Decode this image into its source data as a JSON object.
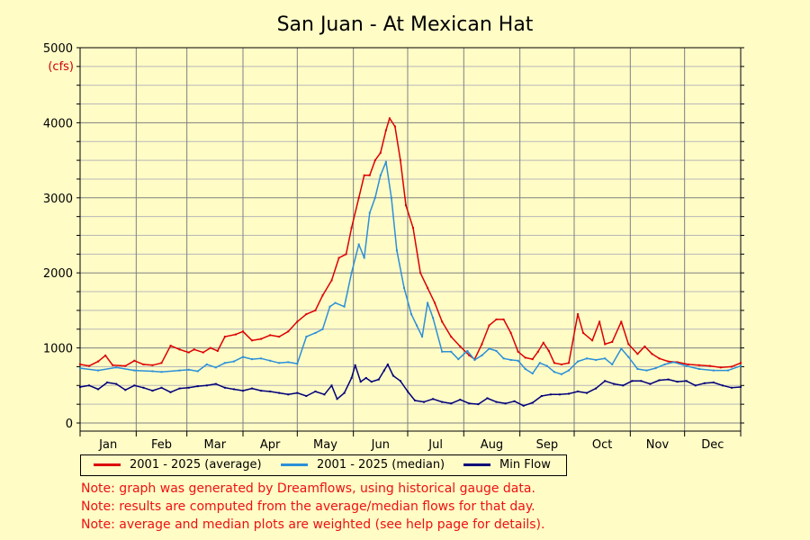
{
  "chart_data": {
    "type": "line",
    "title": "San Juan - At Mexican Hat",
    "ylabel_units": "(cfs)",
    "ylim": [
      0,
      5000
    ],
    "yticks": [
      0,
      1000,
      2000,
      3000,
      4000,
      5000
    ],
    "xlim": [
      0,
      365
    ],
    "months": [
      "Jan",
      "Feb",
      "Mar",
      "Apr",
      "May",
      "Jun",
      "Jul",
      "Aug",
      "Sep",
      "Oct",
      "Nov",
      "Dec"
    ],
    "grid": true,
    "legend_position": "bottom",
    "series": [
      {
        "name": "2001 - 2025 (average)",
        "color": "#dd0000",
        "points": [
          [
            0,
            780
          ],
          [
            5,
            760
          ],
          [
            10,
            820
          ],
          [
            14,
            900
          ],
          [
            18,
            770
          ],
          [
            25,
            760
          ],
          [
            30,
            830
          ],
          [
            35,
            780
          ],
          [
            40,
            770
          ],
          [
            45,
            800
          ],
          [
            50,
            1030
          ],
          [
            55,
            980
          ],
          [
            60,
            940
          ],
          [
            63,
            980
          ],
          [
            68,
            940
          ],
          [
            72,
            1000
          ],
          [
            76,
            960
          ],
          [
            80,
            1150
          ],
          [
            86,
            1180
          ],
          [
            90,
            1220
          ],
          [
            95,
            1100
          ],
          [
            100,
            1120
          ],
          [
            105,
            1170
          ],
          [
            110,
            1150
          ],
          [
            115,
            1220
          ],
          [
            120,
            1350
          ],
          [
            125,
            1450
          ],
          [
            130,
            1500
          ],
          [
            134,
            1700
          ],
          [
            139,
            1900
          ],
          [
            143,
            2200
          ],
          [
            147,
            2250
          ],
          [
            150,
            2600
          ],
          [
            154,
            3000
          ],
          [
            157,
            3300
          ],
          [
            160,
            3300
          ],
          [
            163,
            3500
          ],
          [
            166,
            3600
          ],
          [
            169,
            3900
          ],
          [
            171,
            4060
          ],
          [
            174,
            3950
          ],
          [
            177,
            3500
          ],
          [
            180,
            2900
          ],
          [
            184,
            2600
          ],
          [
            188,
            2000
          ],
          [
            192,
            1800
          ],
          [
            196,
            1600
          ],
          [
            200,
            1350
          ],
          [
            205,
            1150
          ],
          [
            210,
            1020
          ],
          [
            215,
            900
          ],
          [
            218,
            850
          ],
          [
            222,
            1050
          ],
          [
            226,
            1300
          ],
          [
            230,
            1380
          ],
          [
            234,
            1380
          ],
          [
            238,
            1200
          ],
          [
            242,
            950
          ],
          [
            246,
            870
          ],
          [
            250,
            850
          ],
          [
            253,
            950
          ],
          [
            256,
            1070
          ],
          [
            259,
            960
          ],
          [
            262,
            800
          ],
          [
            266,
            780
          ],
          [
            270,
            800
          ],
          [
            275,
            1450
          ],
          [
            278,
            1200
          ],
          [
            283,
            1100
          ],
          [
            287,
            1350
          ],
          [
            290,
            1050
          ],
          [
            294,
            1080
          ],
          [
            299,
            1350
          ],
          [
            303,
            1050
          ],
          [
            308,
            920
          ],
          [
            312,
            1020
          ],
          [
            316,
            920
          ],
          [
            320,
            860
          ],
          [
            325,
            820
          ],
          [
            330,
            810
          ],
          [
            336,
            780
          ],
          [
            342,
            770
          ],
          [
            348,
            760
          ],
          [
            354,
            740
          ],
          [
            360,
            750
          ],
          [
            365,
            800
          ]
        ]
      },
      {
        "name": "2001 - 2025 (median)",
        "color": "#2b90d9",
        "points": [
          [
            0,
            730
          ],
          [
            10,
            700
          ],
          [
            20,
            740
          ],
          [
            30,
            700
          ],
          [
            40,
            690
          ],
          [
            45,
            680
          ],
          [
            55,
            700
          ],
          [
            60,
            710
          ],
          [
            65,
            690
          ],
          [
            70,
            780
          ],
          [
            75,
            740
          ],
          [
            80,
            800
          ],
          [
            85,
            820
          ],
          [
            90,
            880
          ],
          [
            95,
            850
          ],
          [
            100,
            860
          ],
          [
            105,
            830
          ],
          [
            110,
            800
          ],
          [
            115,
            810
          ],
          [
            120,
            790
          ],
          [
            125,
            1150
          ],
          [
            130,
            1200
          ],
          [
            134,
            1250
          ],
          [
            138,
            1550
          ],
          [
            141,
            1600
          ],
          [
            146,
            1550
          ],
          [
            150,
            2000
          ],
          [
            154,
            2380
          ],
          [
            157,
            2200
          ],
          [
            160,
            2800
          ],
          [
            163,
            3000
          ],
          [
            166,
            3300
          ],
          [
            169,
            3480
          ],
          [
            172,
            3000
          ],
          [
            175,
            2300
          ],
          [
            179,
            1800
          ],
          [
            183,
            1450
          ],
          [
            186,
            1300
          ],
          [
            189,
            1150
          ],
          [
            192,
            1600
          ],
          [
            195,
            1400
          ],
          [
            200,
            950
          ],
          [
            205,
            950
          ],
          [
            209,
            850
          ],
          [
            214,
            960
          ],
          [
            218,
            840
          ],
          [
            222,
            900
          ],
          [
            226,
            990
          ],
          [
            230,
            960
          ],
          [
            234,
            860
          ],
          [
            238,
            840
          ],
          [
            242,
            830
          ],
          [
            246,
            720
          ],
          [
            250,
            660
          ],
          [
            254,
            800
          ],
          [
            258,
            760
          ],
          [
            262,
            680
          ],
          [
            266,
            650
          ],
          [
            270,
            700
          ],
          [
            275,
            820
          ],
          [
            280,
            860
          ],
          [
            285,
            840
          ],
          [
            290,
            860
          ],
          [
            294,
            780
          ],
          [
            299,
            990
          ],
          [
            303,
            880
          ],
          [
            308,
            720
          ],
          [
            313,
            700
          ],
          [
            318,
            730
          ],
          [
            323,
            780
          ],
          [
            328,
            810
          ],
          [
            335,
            760
          ],
          [
            342,
            720
          ],
          [
            350,
            700
          ],
          [
            358,
            700
          ],
          [
            365,
            760
          ]
        ]
      },
      {
        "name": "Min Flow",
        "color": "#00007a",
        "points": [
          [
            0,
            480
          ],
          [
            5,
            500
          ],
          [
            10,
            450
          ],
          [
            15,
            540
          ],
          [
            20,
            520
          ],
          [
            25,
            440
          ],
          [
            30,
            500
          ],
          [
            35,
            470
          ],
          [
            40,
            430
          ],
          [
            45,
            470
          ],
          [
            50,
            410
          ],
          [
            55,
            460
          ],
          [
            60,
            470
          ],
          [
            65,
            490
          ],
          [
            70,
            500
          ],
          [
            75,
            520
          ],
          [
            80,
            470
          ],
          [
            85,
            450
          ],
          [
            90,
            430
          ],
          [
            95,
            460
          ],
          [
            100,
            430
          ],
          [
            105,
            420
          ],
          [
            110,
            400
          ],
          [
            115,
            380
          ],
          [
            120,
            400
          ],
          [
            125,
            360
          ],
          [
            130,
            420
          ],
          [
            135,
            380
          ],
          [
            139,
            500
          ],
          [
            142,
            320
          ],
          [
            146,
            400
          ],
          [
            150,
            600
          ],
          [
            152,
            770
          ],
          [
            155,
            550
          ],
          [
            158,
            600
          ],
          [
            161,
            550
          ],
          [
            165,
            580
          ],
          [
            168,
            700
          ],
          [
            170,
            780
          ],
          [
            173,
            630
          ],
          [
            177,
            560
          ],
          [
            181,
            420
          ],
          [
            185,
            300
          ],
          [
            190,
            280
          ],
          [
            195,
            320
          ],
          [
            200,
            280
          ],
          [
            205,
            260
          ],
          [
            210,
            310
          ],
          [
            215,
            260
          ],
          [
            220,
            250
          ],
          [
            225,
            330
          ],
          [
            230,
            280
          ],
          [
            235,
            260
          ],
          [
            240,
            290
          ],
          [
            245,
            230
          ],
          [
            250,
            270
          ],
          [
            255,
            360
          ],
          [
            260,
            380
          ],
          [
            265,
            380
          ],
          [
            270,
            390
          ],
          [
            275,
            420
          ],
          [
            280,
            400
          ],
          [
            285,
            460
          ],
          [
            290,
            560
          ],
          [
            295,
            520
          ],
          [
            300,
            500
          ],
          [
            305,
            560
          ],
          [
            310,
            560
          ],
          [
            315,
            520
          ],
          [
            320,
            570
          ],
          [
            325,
            580
          ],
          [
            330,
            550
          ],
          [
            335,
            560
          ],
          [
            340,
            500
          ],
          [
            345,
            530
          ],
          [
            350,
            540
          ],
          [
            355,
            500
          ],
          [
            360,
            470
          ],
          [
            365,
            480
          ]
        ]
      }
    ],
    "notes": [
      "Note: graph was generated by Dreamflows, using historical gauge data.",
      "Note: results are computed from the average/median flows for that day.",
      "Note: average and median plots are weighted (see help page for details)."
    ]
  }
}
